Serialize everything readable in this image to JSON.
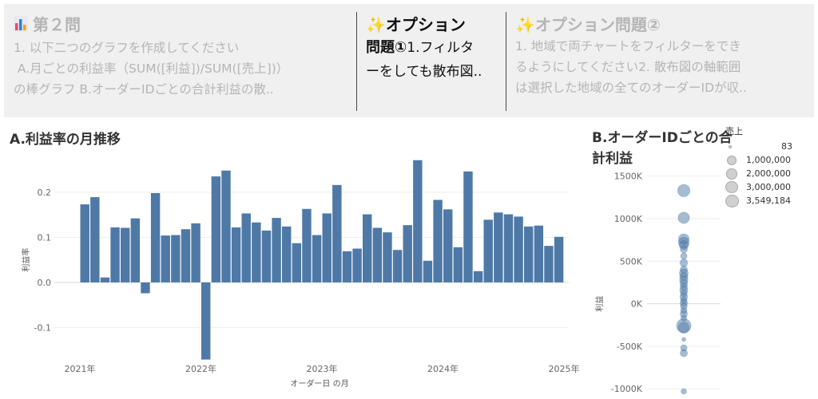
{
  "header": {
    "panel1": {
      "icon": "bar-chart-icon",
      "title": "第２問",
      "lines": [
        "1. 以下二つのグラフを作成してください",
        " A.月ごとの利益率（SUM([利益])/SUM([売上])）",
        "の棒グラフ B.オーダーIDごとの合計利益の散.."
      ]
    },
    "panel2": {
      "icon": "sparkles-icon",
      "title_line1": "オプション",
      "title_line2": "問題①",
      "body_line1": "1.フィルタ",
      "body_line2": "ーをしても散布図.."
    },
    "panel3": {
      "icon": "sparkles-icon",
      "title": "オプション問題②",
      "lines": [
        "1. 地域で両チャートをフィルターをでき",
        "るようにしてください2. 散布図の軸範囲",
        "は選択した地域の全てのオーダーIDが収.."
      ]
    }
  },
  "chart_data": [
    {
      "type": "bar",
      "title": "A.利益率の月推移",
      "xlabel": "オーダー日 の月",
      "ylabel": "利益率",
      "x_tick_labels": [
        "2021年",
        "2022年",
        "2023年",
        "2024年",
        "2025年"
      ],
      "y_tick_labels": [
        "-0.1",
        "0.0",
        "0.1",
        "0.2"
      ],
      "ylim": [
        -0.17,
        0.29
      ],
      "grid": true,
      "series": [
        {
          "values": [
            0.173,
            0.189,
            0.011,
            0.122,
            0.121,
            0.142,
            -0.024,
            0.198,
            0.104,
            0.105,
            0.118,
            0.131,
            -0.171,
            0.235,
            0.248,
            0.122,
            0.153,
            0.133,
            0.115,
            0.143,
            0.124,
            0.087,
            0.163,
            0.105,
            0.153,
            0.216,
            0.069,
            0.075,
            0.151,
            0.121,
            0.111,
            0.072,
            0.127,
            0.271,
            0.048,
            0.183,
            0.162,
            0.078,
            0.246,
            0.025,
            0.139,
            0.155,
            0.151,
            0.146,
            0.124,
            0.126,
            0.081,
            0.101
          ]
        }
      ]
    },
    {
      "type": "scatter",
      "title_line1": "B.オーダーIDごとの合",
      "title_line2": "計利益",
      "ylabel": "利益",
      "y_tick_labels": [
        "-1000K",
        "-500K",
        "0K",
        "500K",
        "1000K",
        "1500K"
      ],
      "ylim": [
        -1120000,
        1600000
      ],
      "grid": true,
      "size_legend": {
        "title": "売上",
        "entries": [
          "83",
          "1,000,000",
          "2,000,000",
          "3,000,000",
          "3,549,184"
        ]
      },
      "points": [
        {
          "y": 1330000,
          "size": 2600000
        },
        {
          "y": 1010000,
          "size": 2200000
        },
        {
          "y": 760000,
          "size": 1900000
        },
        {
          "y": 720000,
          "size": 2000000
        },
        {
          "y": 690000,
          "size": 1400000
        },
        {
          "y": 640000,
          "size": 900000
        },
        {
          "y": 560000,
          "size": 700000
        },
        {
          "y": 480000,
          "size": 1000000
        },
        {
          "y": 400000,
          "size": 900000
        },
        {
          "y": 360000,
          "size": 1300000
        },
        {
          "y": 320000,
          "size": 1100000
        },
        {
          "y": 280000,
          "size": 1200000
        },
        {
          "y": 240000,
          "size": 1000000
        },
        {
          "y": 200000,
          "size": 900000
        },
        {
          "y": 160000,
          "size": 1100000
        },
        {
          "y": 120000,
          "size": 800000
        },
        {
          "y": 80000,
          "size": 1000000
        },
        {
          "y": 40000,
          "size": 700000
        },
        {
          "y": 10000,
          "size": 900000
        },
        {
          "y": -30000,
          "size": 800000
        },
        {
          "y": -80000,
          "size": 700000
        },
        {
          "y": -120000,
          "size": 900000
        },
        {
          "y": -170000,
          "size": 600000
        },
        {
          "y": -260000,
          "size": 3549184
        },
        {
          "y": -280000,
          "size": 2000000
        },
        {
          "y": -420000,
          "size": 200000
        },
        {
          "y": -520000,
          "size": 700000
        },
        {
          "y": -580000,
          "size": 900000
        },
        {
          "y": -1030000,
          "size": 500000
        }
      ]
    }
  ]
}
